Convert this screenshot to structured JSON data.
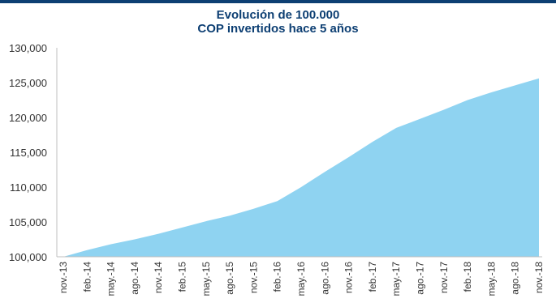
{
  "chart_data": {
    "type": "area",
    "title": "Evolución de 100.000",
    "subtitle": "COP invertidos hace 5 años",
    "xlabel": "",
    "ylabel": "",
    "ylim": [
      100000,
      130000
    ],
    "yticks": [
      100000,
      105000,
      110000,
      115000,
      120000,
      125000,
      130000
    ],
    "ytick_labels": [
      "100,000",
      "105,000",
      "110,000",
      "115,000",
      "120,000",
      "125,000",
      "130,000"
    ],
    "categories": [
      "nov.-13",
      "feb.-14",
      "may.-14",
      "ago.-14",
      "nov.-14",
      "feb.-15",
      "may.-15",
      "ago.-15",
      "nov.-15",
      "feb.-16",
      "may.-16",
      "ago.-16",
      "nov.-16",
      "feb.-17",
      "may.-17",
      "ago.-17",
      "nov.-17",
      "feb.-18",
      "may.-18",
      "ago.-18",
      "nov.-18"
    ],
    "grid": false,
    "legend": "none",
    "fill_color": "#8fd3f1",
    "series": [
      {
        "values": [
          100000,
          100950,
          101800,
          102500,
          103300,
          104200,
          105100,
          105900,
          106900,
          108000,
          110000,
          112200,
          114300,
          116500,
          118500,
          119800,
          121100,
          122500,
          123600,
          124600,
          125600
        ]
      }
    ]
  }
}
